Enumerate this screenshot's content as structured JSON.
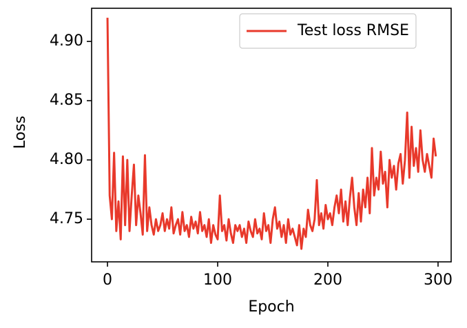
{
  "chart_data": {
    "type": "line",
    "xlabel": "Epoch",
    "ylabel": "Loss",
    "xlim": [
      -14.4,
      311.9
    ],
    "ylim": [
      4.714,
      4.928
    ],
    "xticks": [
      0,
      100,
      200,
      300
    ],
    "yticks": [
      4.75,
      {
        "value": 4.8,
        "label": "4.80"
      },
      4.85,
      {
        "value": 4.9,
        "label": "4.90"
      }
    ],
    "legend": "upper right",
    "x": [
      0,
      2,
      4,
      6,
      8,
      10,
      12,
      14,
      16,
      18,
      20,
      22,
      24,
      26,
      28,
      30,
      32,
      34,
      36,
      38,
      40,
      42,
      44,
      46,
      48,
      50,
      52,
      54,
      56,
      58,
      60,
      62,
      64,
      66,
      68,
      70,
      72,
      74,
      76,
      78,
      80,
      82,
      84,
      86,
      88,
      90,
      92,
      94,
      96,
      98,
      100,
      102,
      104,
      106,
      108,
      110,
      112,
      114,
      116,
      118,
      120,
      122,
      124,
      126,
      128,
      130,
      132,
      134,
      136,
      138,
      140,
      142,
      144,
      146,
      148,
      150,
      152,
      154,
      156,
      158,
      160,
      162,
      164,
      166,
      168,
      170,
      172,
      174,
      176,
      178,
      180,
      182,
      184,
      186,
      188,
      190,
      192,
      194,
      196,
      198,
      200,
      202,
      204,
      206,
      208,
      210,
      212,
      214,
      216,
      218,
      220,
      222,
      224,
      226,
      228,
      230,
      232,
      234,
      236,
      238,
      240,
      242,
      244,
      246,
      248,
      250,
      252,
      254,
      256,
      258,
      260,
      262,
      264,
      266,
      268,
      270,
      272,
      274,
      276,
      278,
      280,
      282,
      284,
      286,
      288,
      290,
      292,
      294,
      296,
      298
    ],
    "series": [
      {
        "name": "Test loss RMSE",
        "color": "#e8392b",
        "values": [
          4.92,
          4.77,
          4.75,
          4.806,
          4.74,
          4.765,
          4.733,
          4.803,
          4.745,
          4.8,
          4.74,
          4.77,
          4.796,
          4.745,
          4.77,
          4.755,
          4.737,
          4.804,
          4.74,
          4.76,
          4.745,
          4.737,
          4.75,
          4.74,
          4.745,
          4.755,
          4.74,
          4.75,
          4.742,
          4.76,
          4.738,
          4.745,
          4.75,
          4.737,
          4.756,
          4.74,
          4.745,
          4.735,
          4.752,
          4.742,
          4.748,
          4.738,
          4.756,
          4.74,
          4.745,
          4.735,
          4.75,
          4.73,
          4.745,
          4.737,
          4.733,
          4.77,
          4.74,
          4.745,
          4.732,
          4.75,
          4.738,
          4.73,
          4.745,
          4.74,
          4.745,
          4.735,
          4.742,
          4.73,
          4.748,
          4.74,
          4.735,
          4.75,
          4.738,
          4.742,
          4.733,
          4.755,
          4.74,
          4.745,
          4.73,
          4.75,
          4.76,
          4.742,
          4.748,
          4.735,
          4.745,
          4.73,
          4.75,
          4.737,
          4.742,
          4.735,
          4.728,
          4.745,
          4.725,
          4.742,
          4.735,
          4.758,
          4.745,
          4.74,
          4.75,
          4.783,
          4.745,
          4.755,
          4.742,
          4.762,
          4.75,
          4.755,
          4.745,
          4.76,
          4.77,
          4.755,
          4.775,
          4.748,
          4.765,
          4.745,
          4.768,
          4.785,
          4.76,
          4.745,
          4.772,
          4.748,
          4.775,
          4.76,
          4.785,
          4.755,
          4.81,
          4.77,
          4.785,
          4.775,
          4.807,
          4.78,
          4.79,
          4.76,
          4.8,
          4.785,
          4.795,
          4.775,
          4.797,
          4.805,
          4.78,
          4.8,
          4.84,
          4.785,
          4.828,
          4.795,
          4.81,
          4.79,
          4.825,
          4.8,
          4.79,
          4.805,
          4.795,
          4.785,
          4.818,
          4.803
        ]
      }
    ]
  }
}
